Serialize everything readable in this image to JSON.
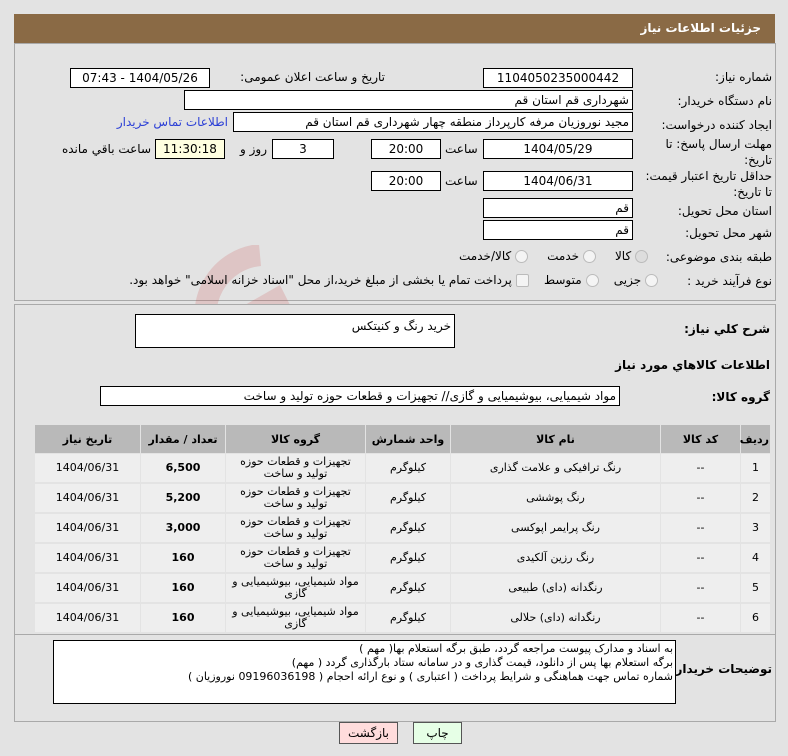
{
  "header": {
    "title": "جزئیات اطلاعات نیاز"
  },
  "form": {
    "need_number_label": "شماره نیاز:",
    "need_number": "1104050235000442",
    "announce_label": "تاریخ و ساعت اعلان عمومی:",
    "announce_value": "1404/05/26 - 07:43",
    "buyer_label": "نام دستگاه خریدار:",
    "buyer": "شهرداری قم استان قم",
    "creator_label": "ایجاد کننده درخواست:",
    "creator": "مجید نوروزیان مرفه کارپرداز منطقه چهار شهرداری قم استان قم",
    "contact_link": "اطلاعات تماس خریدار",
    "deadline_label": "مهلت ارسال پاسخ: تا تاریخ:",
    "deadline_date": "1404/05/29",
    "time_label": "ساعت",
    "deadline_time": "20:00",
    "days": "3",
    "days_label": "روز و",
    "remaining": "11:30:18",
    "remaining_label": "ساعت باقي مانده",
    "validity_label": "حداقل تاریخ اعتبار قیمت: تا تاریخ:",
    "validity_date": "1404/06/31",
    "validity_time": "20:00",
    "province_label": "استان محل تحویل:",
    "province": "قم",
    "city_label": "شهر محل تحویل:",
    "city": "قم",
    "category_label": "طبقه بندی موضوعی:",
    "category_options": [
      "کالا",
      "خدمت",
      "کالا/خدمت"
    ],
    "category_selected": "کالا",
    "process_label": "نوع فرآیند خرید :",
    "process_options": [
      "جزیی",
      "متوسط"
    ],
    "payment_note": "پرداخت تمام یا بخشی از مبلغ خرید،از محل \"اسناد خزانه اسلامی\" خواهد بود."
  },
  "summary": {
    "label": "شرح کلي نیاز:",
    "value": "خرید رنگ و کنیتکس"
  },
  "goods": {
    "section_title": "اطلاعات کالاهاي مورد نیاز",
    "group_label": "گروه کالا:",
    "group_value": "مواد شیمیایی، بیوشیمیایی و  گازی// تجهیزات و قطعات حوزه تولید و ساخت",
    "columns": [
      "ردیف",
      "کد کالا",
      "نام کالا",
      "واحد شمارش",
      "گروه کالا",
      "تعداد / مقدار",
      "تاریخ نیاز"
    ],
    "rows": [
      [
        "1",
        "--",
        "رنگ ترافیکی و علامت گذاری",
        "کیلوگرم",
        "تجهیزات و قطعات حوزه تولید و ساخت",
        "6,500",
        "1404/06/31"
      ],
      [
        "2",
        "--",
        "رنگ پوششی",
        "کیلوگرم",
        "تجهیزات و قطعات حوزه تولید و ساخت",
        "5,200",
        "1404/06/31"
      ],
      [
        "3",
        "--",
        "رنگ پرایمر اپوکسی",
        "کیلوگرم",
        "تجهیزات و قطعات حوزه تولید و ساخت",
        "3,000",
        "1404/06/31"
      ],
      [
        "4",
        "--",
        "رنگ رزین آلکیدی",
        "کیلوگرم",
        "تجهیزات و قطعات حوزه تولید و ساخت",
        "160",
        "1404/06/31"
      ],
      [
        "5",
        "--",
        "رنگدانه (دای) طبیعی",
        "کیلوگرم",
        "مواد شیمیایی، بیوشیمیایی و گازی",
        "160",
        "1404/06/31"
      ],
      [
        "6",
        "--",
        "رنگدانه (دای) حلالی",
        "کیلوگرم",
        "مواد شیمیایی، بیوشیمیایی و گازی",
        "160",
        "1404/06/31"
      ]
    ]
  },
  "notes": {
    "label": "توضیحات خریدار:",
    "lines": [
      "به اسناد و مدارک پیوست مراجعه گردد، طبق برگه استعلام بها( مهم )",
      "برگه استعلام بها پس از دانلود، قیمت گذاری و در سامانه ستاد بارگذاری گردد ( مهم)",
      "شماره تماس جهت هماهنگی و شرایط پرداخت ( اعتباری ) و نوع ارائه احجام ( 09196036198 نوروزیان )"
    ]
  },
  "buttons": {
    "print": "چاپ",
    "back": "بازگشت"
  },
  "watermark": "AriaTender.net",
  "colors": {
    "header": "#8a6a45",
    "link": "#2b3fd6",
    "print_btn": "#e6ffe6",
    "back_btn": "#ffdcdc"
  }
}
